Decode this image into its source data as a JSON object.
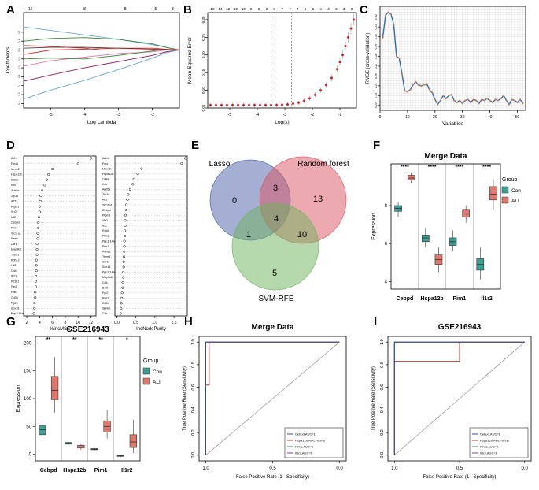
{
  "chart_data": [
    {
      "id": "A",
      "panel_label": "A",
      "type": "line",
      "title": "",
      "xlabel": "Log Lambda",
      "ylabel": "Coefficients",
      "xlim": [
        -5.8,
        -1.2
      ],
      "ylim": [
        -0.65,
        0.42
      ],
      "xticks": [
        -5,
        -4,
        -3,
        -2
      ],
      "yticks": [
        -0.6,
        -0.5,
        -0.4,
        -0.3,
        -0.2,
        -0.1,
        0.0,
        0.1,
        0.2
      ],
      "top_ticks": [
        {
          "x": -5.6,
          "label": "15"
        },
        {
          "x": -4.0,
          "label": "8"
        },
        {
          "x": -2.8,
          "label": "8"
        },
        {
          "x": -1.9,
          "label": "5"
        },
        {
          "x": -1.4,
          "label": "3"
        }
      ],
      "series": [
        {
          "color": "#6aa6d8",
          "x": [
            -5.8,
            -5.0,
            -4.0,
            -3.0,
            -2.0,
            -1.6,
            -1.2
          ],
          "y": [
            0.26,
            0.22,
            0.17,
            0.12,
            0.06,
            0.03,
            0.0
          ]
        },
        {
          "color": "#3a8a3a",
          "x": [
            -5.8,
            -5.0,
            -4.0,
            -3.0,
            -2.0,
            -1.6,
            -1.2
          ],
          "y": [
            0.1,
            0.13,
            0.14,
            0.12,
            0.07,
            0.03,
            0.0
          ]
        },
        {
          "color": "#cc2a2a",
          "x": [
            -5.8,
            -5.0,
            -4.0,
            -3.0,
            -2.0,
            -1.6,
            -1.2
          ],
          "y": [
            -0.05,
            0.0,
            0.01,
            0.02,
            0.02,
            0.01,
            0.0
          ]
        },
        {
          "color": "#e07ab8",
          "x": [
            -5.8,
            -5.0,
            -4.0,
            -3.0,
            -2.0,
            -1.6,
            -1.2
          ],
          "y": [
            -0.18,
            -0.12,
            -0.08,
            -0.04,
            -0.02,
            0.0,
            0.0
          ]
        },
        {
          "color": "#8b1a5a",
          "x": [
            -5.8,
            -5.0,
            -4.0,
            -3.0,
            -2.0,
            -1.6,
            -1.2
          ],
          "y": [
            -0.35,
            -0.28,
            -0.2,
            -0.13,
            -0.06,
            -0.02,
            0.0
          ]
        },
        {
          "color": "#6aa6d8",
          "x": [
            -5.8,
            -5.0,
            -4.0,
            -3.0,
            -2.0,
            -1.6,
            -1.2
          ],
          "y": [
            -0.55,
            -0.45,
            -0.34,
            -0.22,
            -0.09,
            -0.03,
            0.0
          ]
        },
        {
          "color": "#3a8a3a",
          "x": [
            -5.8,
            -5.0,
            -4.0,
            -3.0,
            -2.2,
            -1.8,
            -1.2
          ],
          "y": [
            -0.1,
            -0.09,
            -0.1,
            -0.06,
            -0.02,
            0.0,
            0.0
          ]
        },
        {
          "color": "#444444",
          "x": [
            -5.8,
            -5.0,
            -4.0,
            -3.0,
            -2.0,
            -1.2
          ],
          "y": [
            0.02,
            0.03,
            0.03,
            0.02,
            0.01,
            0.0
          ]
        },
        {
          "color": "#cc2a2a",
          "x": [
            -5.8,
            -5.0,
            -4.0,
            -3.5,
            -3.0,
            -1.2
          ],
          "y": [
            0.05,
            0.04,
            0.02,
            0.0,
            0.0,
            0.0
          ]
        }
      ]
    },
    {
      "id": "B",
      "panel_label": "B",
      "type": "scatter",
      "title": "",
      "xlabel": "Log(λ)",
      "ylabel": "Mean-Squared Error",
      "xlim": [
        -5.8,
        -0.4
      ],
      "ylim": [
        0.05,
        0.32
      ],
      "xticks": [
        -5,
        -4,
        -3,
        -2,
        -1
      ],
      "yticks": [
        0.05,
        0.1,
        0.15,
        0.2,
        0.25,
        0.3
      ],
      "top_ticks": [
        "16",
        "14",
        "12",
        "10",
        "10",
        "8",
        "8",
        "8",
        "8",
        "7",
        "7",
        "7",
        "5",
        "5",
        "4",
        "4",
        "3",
        "3",
        "0"
      ],
      "vlines": [
        -3.5,
        -2.75
      ],
      "x": [
        -5.7,
        -5.5,
        -5.3,
        -5.1,
        -4.9,
        -4.7,
        -4.5,
        -4.3,
        -4.1,
        -3.9,
        -3.7,
        -3.5,
        -3.3,
        -3.1,
        -2.9,
        -2.7,
        -2.5,
        -2.3,
        -2.1,
        -1.9,
        -1.7,
        -1.5,
        -1.3,
        -1.1,
        -1.0,
        -0.9,
        -0.8,
        -0.7,
        -0.6,
        -0.5
      ],
      "y": [
        0.058,
        0.058,
        0.058,
        0.058,
        0.058,
        0.058,
        0.058,
        0.058,
        0.058,
        0.058,
        0.058,
        0.058,
        0.058,
        0.059,
        0.06,
        0.062,
        0.065,
        0.07,
        0.077,
        0.087,
        0.1,
        0.115,
        0.135,
        0.16,
        0.18,
        0.2,
        0.225,
        0.25,
        0.275,
        0.3
      ]
    },
    {
      "id": "C",
      "panel_label": "C",
      "type": "line",
      "title": "",
      "xlabel": "Variables",
      "ylabel": "RMSE (cross-validation)",
      "xlim": [
        0,
        53
      ],
      "ylim": [
        0.225,
        0.331
      ],
      "xticks": [
        0,
        10,
        20,
        30,
        40,
        50
      ],
      "yticks": [
        0.23,
        0.24,
        0.25,
        0.26,
        0.27,
        0.28,
        0.29,
        0.3,
        0.31,
        0.32
      ],
      "x": [
        1,
        2,
        3,
        4,
        5,
        6,
        7,
        8,
        9,
        10,
        11,
        12,
        13,
        14,
        15,
        16,
        17,
        18,
        19,
        20,
        21,
        22,
        23,
        24,
        25,
        26,
        27,
        28,
        29,
        30,
        31,
        32,
        33,
        34,
        35,
        36,
        37,
        38,
        39,
        40,
        41,
        42,
        43,
        44,
        45,
        46,
        47,
        48,
        49,
        50,
        51,
        52
      ],
      "y": [
        0.299,
        0.322,
        0.325,
        0.323,
        0.312,
        0.28,
        0.278,
        0.262,
        0.245,
        0.244,
        0.246,
        0.251,
        0.254,
        0.251,
        0.25,
        0.251,
        0.252,
        0.246,
        0.243,
        0.236,
        0.231,
        0.235,
        0.24,
        0.237,
        0.24,
        0.241,
        0.235,
        0.233,
        0.235,
        0.232,
        0.235,
        0.236,
        0.233,
        0.236,
        0.235,
        0.232,
        0.236,
        0.235,
        0.237,
        0.235,
        0.233,
        0.236,
        0.235,
        0.237,
        0.24,
        0.235,
        0.231,
        0.236,
        0.235,
        0.233,
        0.236,
        0.232
      ]
    },
    {
      "id": "D1",
      "panel_label": "D",
      "type": "scatter",
      "xlabel": "%IncMSE",
      "xlim": [
        1.5,
        12.8
      ],
      "xticks": [
        2,
        4,
        6,
        8,
        10,
        12
      ],
      "labels": [
        "Adh1",
        "Fmo1",
        "Mexx2",
        "Hspa12b",
        "Cdkar",
        "Kck",
        "Arid5a",
        "Zfp36",
        "Atf3",
        "Pfgm1",
        "Il1r2",
        "Mt2",
        "Cebpd",
        "Pim1",
        "Slc11a1",
        "Rab5",
        "Ccr1",
        "Map3k8",
        "Trem1",
        "Rdh12",
        "Hk2",
        "Cd4",
        "Bcl3",
        "P13k1",
        "Fgr2",
        "Pdk4",
        "Cd38",
        "Rgs1",
        "Sox18",
        "Ppp1r14a"
      ],
      "values": [
        12.0,
        10.0,
        6.0,
        5.4,
        5.1,
        4.8,
        4.4,
        4.2,
        4.1,
        4.0,
        4.0,
        3.9,
        3.8,
        3.8,
        3.7,
        3.7,
        3.6,
        3.6,
        3.6,
        3.5,
        3.5,
        3.5,
        3.4,
        3.4,
        3.4,
        3.3,
        3.3,
        3.2,
        3.2,
        3.1
      ]
    },
    {
      "id": "D2",
      "panel_label": "",
      "type": "scatter",
      "xlabel": "IncNodePurity",
      "xlim": [
        -0.05,
        1.85
      ],
      "xticks": [
        0.0,
        0.5,
        1.0,
        1.5
      ],
      "labels": [
        "Adh1",
        "Fmo1",
        "Mexx2",
        "Hspa12b",
        "Cdkar",
        "Kck",
        "Arid5a",
        "Zfp36",
        "Atf3",
        "Slc11a1",
        "Cebpd",
        "Pfgm1",
        "Il1r2",
        "Mt2",
        "Rab5",
        "Pim1",
        "Ppp1r14a",
        "Pim1",
        "Rdh12",
        "Trem1",
        "Ccr1",
        "Sox18",
        "Ppp1r14a",
        "Map3k8",
        "Cd4",
        "Bcl3",
        "Fgr2",
        "Rgs1",
        "Cd3r",
        "Sphk1",
        "Cdc"
      ],
      "values": [
        1.8,
        1.7,
        0.65,
        0.55,
        0.45,
        0.42,
        0.35,
        0.3,
        0.28,
        0.25,
        0.25,
        0.23,
        0.22,
        0.22,
        0.21,
        0.21,
        0.2,
        0.2,
        0.19,
        0.19,
        0.18,
        0.18,
        0.17,
        0.17,
        0.16,
        0.15,
        0.14,
        0.13,
        0.12,
        0.11,
        0.1
      ]
    },
    {
      "id": "E",
      "panel_label": "E",
      "type": "venn",
      "sets": [
        {
          "name": "Lasso",
          "color": "#4a5fa8"
        },
        {
          "name": "Random forest",
          "color": "#d9545f"
        },
        {
          "name": "SVM-RFE",
          "color": "#6bb35c"
        }
      ],
      "regions": {
        "lasso_only": 0,
        "rf_only": 13,
        "svm_only": 5,
        "lasso_rf": 3,
        "lasso_svm": 1,
        "rf_svm": 10,
        "all": 4
      }
    },
    {
      "id": "F",
      "panel_label": "F",
      "type": "box",
      "title": "Merge Data",
      "ylabel": "Expression",
      "ylim": [
        3.6,
        10.2
      ],
      "yticks": [
        4,
        6,
        8
      ],
      "categories": [
        "Cebpd",
        "Hspa12b",
        "Pim1",
        "Il1r2"
      ],
      "significance": [
        "****",
        "****",
        "****",
        "****"
      ],
      "legend_title": "Group",
      "groups": [
        {
          "name": "Con",
          "color": "#3e9e93"
        },
        {
          "name": "ALI",
          "color": "#e0786e"
        }
      ],
      "boxes": {
        "Con": [
          [
            7.4,
            7.7,
            7.85,
            8.0,
            8.2
          ],
          [
            5.8,
            6.1,
            6.3,
            6.45,
            6.8
          ],
          [
            5.6,
            5.9,
            6.1,
            6.3,
            6.7
          ],
          [
            4.1,
            4.6,
            4.9,
            5.2,
            5.8
          ]
        ],
        "ALI": [
          [
            9.2,
            9.35,
            9.45,
            9.6,
            9.75
          ],
          [
            4.5,
            4.9,
            5.15,
            5.4,
            5.8
          ],
          [
            7.1,
            7.4,
            7.6,
            7.8,
            8.0
          ],
          [
            7.8,
            8.3,
            8.6,
            9.0,
            9.4
          ]
        ]
      }
    },
    {
      "id": "G",
      "panel_label": "G",
      "type": "box",
      "title": "GSE216943",
      "ylabel": "Expression",
      "ylim": [
        -12,
        212
      ],
      "yticks": [
        0,
        50,
        100,
        150,
        200
      ],
      "categories": [
        "Cebpd",
        "Hspa12b",
        "Pim1",
        "Il1r2"
      ],
      "significance": [
        "**",
        "**",
        "**",
        "*"
      ],
      "legend_title": "Group",
      "groups": [
        {
          "name": "Con",
          "color": "#3e9e93"
        },
        {
          "name": "ALI",
          "color": "#e0786e"
        }
      ],
      "boxes": {
        "Con": [
          [
            28,
            35,
            44,
            52,
            58
          ],
          [
            16,
            18,
            20,
            21,
            22
          ],
          [
            7,
            8,
            9,
            10,
            11
          ],
          [
            -5,
            -4,
            -3,
            -2,
            -1
          ]
        ],
        "ALI": [
          [
            75,
            98,
            115,
            140,
            175
          ],
          [
            8,
            11,
            13,
            16,
            18
          ],
          [
            28,
            40,
            50,
            60,
            80
          ],
          [
            2,
            12,
            22,
            35,
            62
          ]
        ]
      }
    },
    {
      "id": "H",
      "panel_label": "H",
      "type": "line",
      "title": "Merge Data",
      "xlabel": "False Positive Rate (1 - Specificity)",
      "ylabel": "True Positive Rate (Sensitivity)",
      "xlim": [
        1.05,
        -0.05
      ],
      "ylim": [
        -0.05,
        1.05
      ],
      "xticks": [
        1.0,
        0.5,
        0.0
      ],
      "yticks": [
        0.0,
        0.2,
        0.4,
        0.6,
        0.8,
        1.0
      ],
      "series": [
        {
          "name": "Cebpd,AUC=1",
          "color": "#3a4ba0",
          "x": [
            1.0,
            1.0,
            0.0
          ],
          "y": [
            0.0,
            1.0,
            1.0
          ]
        },
        {
          "name": "Hspa12b,AUC=0.976",
          "color": "#c0392b",
          "x": [
            1.0,
            1.0,
            0.975,
            0.975,
            0.0
          ],
          "y": [
            0.0,
            0.62,
            0.62,
            1.0,
            1.0
          ]
        },
        {
          "name": "Pim1,AUC=1",
          "color": "#2e8b57",
          "x": [
            1.0,
            1.0,
            0.0
          ],
          "y": [
            0.0,
            1.0,
            1.0
          ]
        },
        {
          "name": "Il1r2,AUC=1",
          "color": "#7b3fa0",
          "x": [
            1.0,
            1.0,
            0.0
          ],
          "y": [
            0.0,
            1.0,
            1.0
          ]
        }
      ]
    },
    {
      "id": "I",
      "panel_label": "I",
      "type": "line",
      "title": "GSE216943",
      "xlabel": "False Positive Rate (1 - Specificity)",
      "ylabel": "True Positive Rate (Sensitivity)",
      "xlim": [
        1.05,
        -0.05
      ],
      "ylim": [
        -0.05,
        1.05
      ],
      "xticks": [
        1.0,
        0.5,
        0.0
      ],
      "yticks": [
        0.0,
        0.2,
        0.4,
        0.6,
        0.8,
        1.0
      ],
      "series": [
        {
          "name": "Cebpd,AUC=1",
          "color": "#3a4ba0",
          "x": [
            1.0,
            1.0,
            0.0
          ],
          "y": [
            0.0,
            1.0,
            1.0
          ]
        },
        {
          "name": "Hspa12b,AUC=0.917",
          "color": "#c0392b",
          "x": [
            1.0,
            1.0,
            0.5,
            0.5,
            0.0
          ],
          "y": [
            0.0,
            0.83,
            0.83,
            1.0,
            1.0
          ]
        },
        {
          "name": "Pim1,AUC=1",
          "color": "#2e8b57",
          "x": [
            1.0,
            1.0,
            0.0
          ],
          "y": [
            0.0,
            1.0,
            1.0
          ]
        },
        {
          "name": "Il1r2,AUC=1",
          "color": "#7b3fa0",
          "x": [
            1.0,
            1.0,
            0.0
          ],
          "y": [
            0.0,
            1.0,
            1.0
          ]
        }
      ]
    }
  ]
}
